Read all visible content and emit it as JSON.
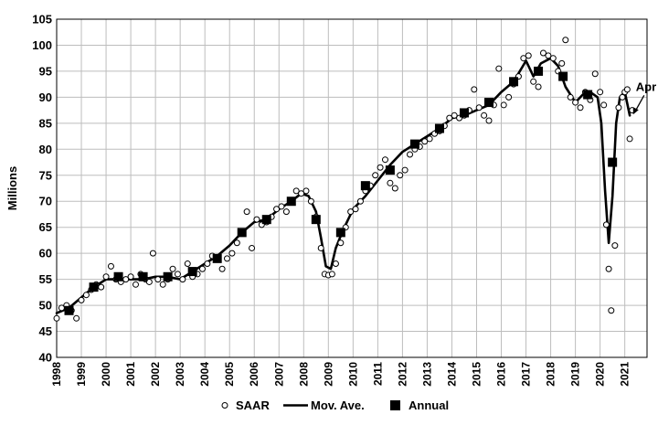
{
  "chart_data": {
    "type": "line",
    "title": "",
    "ylabel": "Millions",
    "xlabel": "",
    "ylim": [
      40,
      105
    ],
    "xlim": [
      1998,
      2021.9
    ],
    "y_ticks": [
      40,
      45,
      50,
      55,
      60,
      65,
      70,
      75,
      80,
      85,
      90,
      95,
      100,
      105
    ],
    "x_ticks": [
      "1998",
      "1999",
      "2000",
      "2001",
      "2002",
      "2003",
      "2004",
      "2005",
      "2006",
      "2007",
      "2008",
      "2009",
      "2010",
      "2011",
      "2012",
      "2013",
      "2014",
      "2015",
      "2016",
      "2017",
      "2018",
      "2019",
      "2020",
      "2021"
    ],
    "grid": true,
    "legend_position": "bottom",
    "annotation": {
      "text": "Apr",
      "x": 2021.3,
      "y": 86.5
    },
    "series": [
      {
        "name": "SAAR",
        "style": "hollow-circle",
        "x": [
          1998.0,
          1998.2,
          1998.4,
          1998.6,
          1998.8,
          1999.0,
          1999.2,
          1999.4,
          1999.6,
          1999.8,
          2000.0,
          2000.2,
          2000.4,
          2000.6,
          2000.8,
          2001.0,
          2001.2,
          2001.4,
          2001.6,
          2001.75,
          2001.9,
          2002.1,
          2002.3,
          2002.5,
          2002.7,
          2002.9,
          2003.1,
          2003.3,
          2003.5,
          2003.7,
          2003.9,
          2004.1,
          2004.3,
          2004.5,
          2004.7,
          2004.9,
          2005.1,
          2005.3,
          2005.5,
          2005.7,
          2005.9,
          2006.1,
          2006.3,
          2006.5,
          2006.7,
          2006.9,
          2007.1,
          2007.3,
          2007.5,
          2007.7,
          2007.9,
          2008.1,
          2008.3,
          2008.5,
          2008.7,
          2008.85,
          2009.0,
          2009.15,
          2009.3,
          2009.5,
          2009.7,
          2009.9,
          2010.1,
          2010.3,
          2010.5,
          2010.7,
          2010.9,
          2011.1,
          2011.3,
          2011.5,
          2011.7,
          2011.9,
          2012.1,
          2012.3,
          2012.5,
          2012.7,
          2012.9,
          2013.1,
          2013.3,
          2013.5,
          2013.7,
          2013.9,
          2014.1,
          2014.3,
          2014.5,
          2014.7,
          2014.9,
          2015.1,
          2015.3,
          2015.5,
          2015.7,
          2015.9,
          2016.1,
          2016.3,
          2016.5,
          2016.7,
          2016.9,
          2017.1,
          2017.3,
          2017.5,
          2017.7,
          2017.9,
          2018.1,
          2018.3,
          2018.45,
          2018.6,
          2018.8,
          2019.0,
          2019.2,
          2019.4,
          2019.6,
          2019.8,
          2020.0,
          2020.15,
          2020.25,
          2020.35,
          2020.45,
          2020.6,
          2020.75,
          2020.9,
          2021.0,
          2021.1,
          2021.2,
          2021.3
        ],
        "values": [
          47.5,
          49.5,
          50.0,
          49.0,
          47.5,
          51.0,
          52.0,
          53.0,
          54.0,
          53.5,
          55.5,
          57.5,
          55.0,
          54.5,
          55.0,
          55.5,
          54.0,
          56.0,
          55.0,
          54.5,
          60.0,
          55.0,
          54.0,
          55.0,
          57.0,
          56.0,
          55.0,
          58.0,
          55.5,
          56.0,
          57.0,
          58.0,
          59.5,
          59.0,
          57.0,
          59.0,
          60.0,
          62.0,
          64.0,
          68.0,
          61.0,
          66.5,
          65.5,
          66.0,
          67.0,
          68.5,
          69.0,
          68.0,
          70.0,
          72.0,
          71.5,
          72.0,
          70.0,
          67.0,
          61.0,
          56.0,
          55.8,
          56.0,
          58.0,
          62.0,
          65.0,
          68.0,
          68.5,
          70.0,
          72.0,
          73.0,
          75.0,
          76.5,
          78.0,
          73.5,
          72.5,
          75.0,
          76.0,
          79.0,
          80.0,
          80.5,
          81.5,
          82.0,
          83.0,
          83.5,
          84.5,
          86.0,
          86.5,
          86.0,
          86.5,
          87.5,
          91.5,
          88.0,
          86.5,
          85.5,
          88.5,
          95.5,
          88.5,
          90.0,
          92.5,
          94.0,
          97.5,
          98.0,
          93.0,
          92.0,
          98.5,
          98.0,
          97.5,
          95.0,
          96.5,
          101.0,
          90.0,
          89.0,
          88.0,
          91.0,
          89.5,
          94.5,
          91.0,
          88.5,
          65.5,
          57.0,
          49.0,
          61.5,
          88.0,
          90.0,
          91.0,
          91.5,
          82.0,
          87.5
        ]
      },
      {
        "name": "Mov. Ave.",
        "style": "line",
        "x": [
          1998.0,
          1998.5,
          1999.0,
          1999.5,
          2000.0,
          2000.5,
          2001.0,
          2001.5,
          2002.0,
          2002.5,
          2003.0,
          2003.5,
          2004.0,
          2004.5,
          2005.0,
          2005.5,
          2006.0,
          2006.5,
          2007.0,
          2007.5,
          2007.9,
          2008.2,
          2008.5,
          2008.7,
          2008.9,
          2009.1,
          2009.3,
          2009.6,
          2010.0,
          2010.5,
          2011.0,
          2011.5,
          2012.0,
          2012.5,
          2013.0,
          2013.5,
          2014.0,
          2014.5,
          2015.0,
          2015.5,
          2016.0,
          2016.5,
          2017.0,
          2017.3,
          2017.6,
          2018.0,
          2018.3,
          2018.6,
          2019.0,
          2019.3,
          2019.6,
          2019.9,
          2020.05,
          2020.2,
          2020.35,
          2020.5,
          2020.65,
          2020.8,
          2021.0,
          2021.2
        ],
        "values": [
          48.5,
          49.5,
          51.5,
          53.5,
          55.0,
          55.0,
          55.0,
          55.0,
          55.5,
          55.5,
          55.0,
          56.5,
          58.0,
          59.5,
          61.5,
          64.0,
          66.0,
          66.5,
          68.5,
          70.0,
          71.5,
          71.0,
          68.0,
          63.0,
          57.5,
          57.0,
          61.0,
          64.5,
          68.5,
          71.0,
          74.0,
          77.0,
          79.5,
          81.0,
          82.5,
          84.0,
          86.0,
          86.5,
          87.5,
          88.5,
          91.0,
          93.0,
          97.0,
          94.0,
          96.5,
          97.5,
          96.0,
          92.0,
          89.0,
          90.5,
          91.0,
          90.0,
          85.0,
          72.0,
          62.0,
          71.0,
          85.0,
          90.0,
          91.0,
          86.5
        ]
      },
      {
        "name": "Annual",
        "style": "filled-square",
        "x": [
          1998.5,
          1999.5,
          2000.5,
          2001.5,
          2002.5,
          2003.5,
          2004.5,
          2005.5,
          2006.5,
          2007.5,
          2008.5,
          2009.5,
          2010.5,
          2011.5,
          2012.5,
          2013.5,
          2014.5,
          2015.5,
          2016.5,
          2017.5,
          2018.5,
          2019.5,
          2020.5
        ],
        "values": [
          49.0,
          53.5,
          55.5,
          55.5,
          55.5,
          56.5,
          59.0,
          64.0,
          66.5,
          70.0,
          66.5,
          64.0,
          73.0,
          76.0,
          81.0,
          84.0,
          87.0,
          89.0,
          93.0,
          95.0,
          94.0,
          90.5,
          77.5
        ]
      }
    ]
  }
}
